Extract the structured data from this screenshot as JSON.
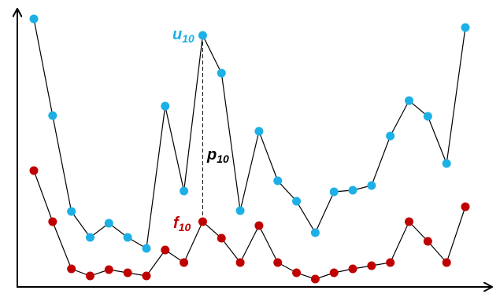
{
  "chart_data": {
    "type": "line",
    "categories": [
      null,
      null,
      null,
      null,
      null,
      null,
      null,
      null,
      null,
      null,
      null,
      null,
      null,
      null,
      null,
      null,
      null,
      null,
      null,
      null,
      null,
      null,
      null,
      null
    ],
    "ylim": [
      0,
      354
    ],
    "series": [
      {
        "name": null,
        "color": "#1cb0e6",
        "values": [
          340,
          217,
          95,
          62,
          80,
          62,
          48,
          229,
          121,
          319,
          271,
          96,
          197,
          134,
          108,
          68,
          120,
          122,
          128,
          191,
          236,
          216,
          156,
          329
        ]
      },
      {
        "name": null,
        "color": "#c00000",
        "values": [
          147,
          82,
          22,
          13,
          21,
          17,
          13,
          46,
          30,
          82,
          61,
          30,
          77,
          30,
          17,
          9,
          17,
          22,
          26,
          30,
          82,
          57,
          30,
          101
        ]
      }
    ],
    "annotations": [
      {
        "text": "u",
        "subscript": "10",
        "color": "#1cb0e6"
      },
      {
        "text": "p",
        "subscript": "10",
        "color": "#000000"
      },
      {
        "text": "f",
        "subscript": "10",
        "color": "#c00000"
      }
    ]
  }
}
